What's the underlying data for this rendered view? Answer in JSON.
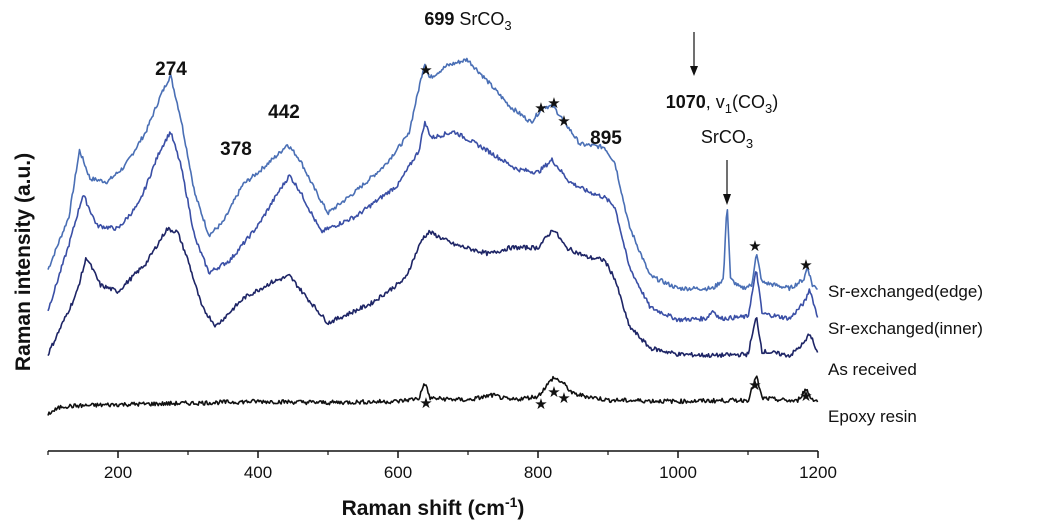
{
  "chart_data": {
    "type": "line",
    "xlabel": "Raman shift (cm⁻¹)",
    "xlabel_main": "Raman shift (cm",
    "xlabel_sup": "-1",
    "xlabel_end": ")",
    "ylabel": "Raman intensity (a.u.)",
    "xlim": [
      100,
      1200
    ],
    "xticks": [
      200,
      400,
      600,
      800,
      1000,
      1200
    ],
    "xtick_labels": [
      "200",
      "400",
      "600",
      "800",
      "1000",
      "1200"
    ],
    "yticks": "none",
    "grid": false,
    "legend": "text labels at right end of each trace",
    "series": [
      {
        "name": "Sr-exchanged(edge)",
        "color": "#4a6fb5",
        "points": [
          [
            100,
            2.7
          ],
          [
            130,
            3.55
          ],
          [
            145,
            4.6
          ],
          [
            160,
            4.15
          ],
          [
            185,
            4.1
          ],
          [
            210,
            4.35
          ],
          [
            240,
            4.9
          ],
          [
            262,
            5.5
          ],
          [
            275,
            5.8
          ],
          [
            290,
            5.1
          ],
          [
            310,
            3.9
          ],
          [
            330,
            3.25
          ],
          [
            350,
            3.45
          ],
          [
            378,
            4.05
          ],
          [
            400,
            4.25
          ],
          [
            430,
            4.55
          ],
          [
            442,
            4.7
          ],
          [
            460,
            4.45
          ],
          [
            480,
            4.0
          ],
          [
            500,
            3.6
          ],
          [
            540,
            3.95
          ],
          [
            580,
            4.35
          ],
          [
            615,
            4.85
          ],
          [
            630,
            5.6
          ],
          [
            638,
            6.0
          ],
          [
            645,
            5.75
          ],
          [
            670,
            5.95
          ],
          [
            699,
            6.05
          ],
          [
            720,
            5.8
          ],
          [
            760,
            5.3
          ],
          [
            790,
            5.05
          ],
          [
            808,
            5.3
          ],
          [
            822,
            5.3
          ],
          [
            838,
            5.05
          ],
          [
            860,
            4.7
          ],
          [
            895,
            4.65
          ],
          [
            910,
            4.4
          ],
          [
            930,
            3.4
          ],
          [
            960,
            2.6
          ],
          [
            1000,
            2.4
          ],
          [
            1050,
            2.4
          ],
          [
            1065,
            2.55
          ],
          [
            1070,
            3.8
          ],
          [
            1075,
            2.55
          ],
          [
            1090,
            2.4
          ],
          [
            1105,
            2.45
          ],
          [
            1112,
            2.95
          ],
          [
            1120,
            2.5
          ],
          [
            1160,
            2.4
          ],
          [
            1180,
            2.55
          ],
          [
            1185,
            2.75
          ],
          [
            1192,
            2.45
          ],
          [
            1200,
            2.4
          ]
        ]
      },
      {
        "name": "Sr-exchanged(inner)",
        "color": "#3a4fa6",
        "points": [
          [
            100,
            2.05
          ],
          [
            130,
            3.1
          ],
          [
            150,
            3.9
          ],
          [
            170,
            3.4
          ],
          [
            200,
            3.35
          ],
          [
            230,
            3.75
          ],
          [
            260,
            4.6
          ],
          [
            275,
            4.9
          ],
          [
            290,
            4.35
          ],
          [
            310,
            3.2
          ],
          [
            330,
            2.65
          ],
          [
            360,
            2.85
          ],
          [
            400,
            3.4
          ],
          [
            430,
            3.95
          ],
          [
            445,
            4.2
          ],
          [
            460,
            3.95
          ],
          [
            490,
            3.3
          ],
          [
            540,
            3.55
          ],
          [
            600,
            4.05
          ],
          [
            630,
            4.6
          ],
          [
            638,
            5.05
          ],
          [
            648,
            4.8
          ],
          [
            680,
            4.9
          ],
          [
            720,
            4.65
          ],
          [
            770,
            4.3
          ],
          [
            800,
            4.25
          ],
          [
            820,
            4.45
          ],
          [
            845,
            4.1
          ],
          [
            870,
            3.95
          ],
          [
            895,
            3.85
          ],
          [
            910,
            3.7
          ],
          [
            930,
            2.75
          ],
          [
            960,
            2.1
          ],
          [
            1000,
            1.9
          ],
          [
            1040,
            1.92
          ],
          [
            1050,
            2.05
          ],
          [
            1060,
            1.92
          ],
          [
            1100,
            1.95
          ],
          [
            1112,
            2.7
          ],
          [
            1120,
            2.0
          ],
          [
            1160,
            1.92
          ],
          [
            1182,
            2.2
          ],
          [
            1188,
            2.4
          ],
          [
            1200,
            1.92
          ]
        ]
      },
      {
        "name": "As received",
        "color": "#1e2566",
        "points": [
          [
            100,
            1.35
          ],
          [
            140,
            2.3
          ],
          [
            155,
            2.9
          ],
          [
            175,
            2.45
          ],
          [
            200,
            2.35
          ],
          [
            240,
            2.8
          ],
          [
            270,
            3.35
          ],
          [
            285,
            3.3
          ],
          [
            300,
            2.85
          ],
          [
            320,
            2.1
          ],
          [
            340,
            1.8
          ],
          [
            380,
            2.25
          ],
          [
            420,
            2.5
          ],
          [
            445,
            2.6
          ],
          [
            470,
            2.25
          ],
          [
            500,
            1.85
          ],
          [
            560,
            2.15
          ],
          [
            610,
            2.55
          ],
          [
            635,
            3.2
          ],
          [
            645,
            3.3
          ],
          [
            680,
            3.1
          ],
          [
            730,
            2.95
          ],
          [
            760,
            3.05
          ],
          [
            800,
            3.05
          ],
          [
            822,
            3.35
          ],
          [
            840,
            3.05
          ],
          [
            870,
            2.9
          ],
          [
            895,
            2.85
          ],
          [
            910,
            2.55
          ],
          [
            930,
            1.8
          ],
          [
            960,
            1.45
          ],
          [
            1000,
            1.35
          ],
          [
            1050,
            1.33
          ],
          [
            1100,
            1.35
          ],
          [
            1112,
            1.95
          ],
          [
            1120,
            1.4
          ],
          [
            1160,
            1.33
          ],
          [
            1182,
            1.55
          ],
          [
            1188,
            1.7
          ],
          [
            1200,
            1.33
          ]
        ]
      },
      {
        "name": "Epoxy resin",
        "color": "#111111",
        "points": [
          [
            100,
            0.4
          ],
          [
            120,
            0.52
          ],
          [
            200,
            0.55
          ],
          [
            300,
            0.57
          ],
          [
            400,
            0.6
          ],
          [
            500,
            0.58
          ],
          [
            600,
            0.6
          ],
          [
            630,
            0.65
          ],
          [
            638,
            0.9
          ],
          [
            646,
            0.65
          ],
          [
            700,
            0.62
          ],
          [
            735,
            0.7
          ],
          [
            760,
            0.62
          ],
          [
            800,
            0.68
          ],
          [
            810,
            0.82
          ],
          [
            822,
            0.98
          ],
          [
            835,
            0.9
          ],
          [
            850,
            0.72
          ],
          [
            900,
            0.62
          ],
          [
            1000,
            0.6
          ],
          [
            1100,
            0.62
          ],
          [
            1112,
            1.0
          ],
          [
            1120,
            0.65
          ],
          [
            1170,
            0.6
          ],
          [
            1183,
            0.8
          ],
          [
            1190,
            0.65
          ],
          [
            1200,
            0.6
          ]
        ]
      }
    ],
    "annotations": {
      "p274": "274",
      "p378": "378",
      "p442": "442",
      "p895": "895",
      "p699": "699",
      "p699_note_main": "SrCO",
      "p699_note_sub": "3",
      "p1070": "1070",
      "p1070_note_a": ", v",
      "p1070_note_sub1": "1",
      "p1070_note_b": "(CO",
      "p1070_note_sub2": "3",
      "p1070_note_c": ")",
      "p1070_line2_main": "SrCO",
      "p1070_line2_sub": "3",
      "star": "★"
    }
  }
}
